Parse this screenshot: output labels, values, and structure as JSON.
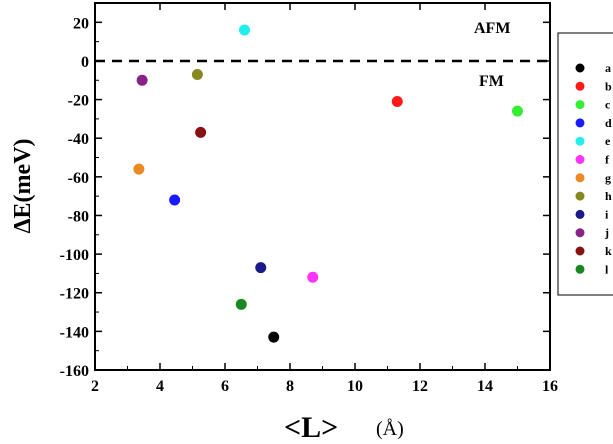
{
  "chart_data": {
    "type": "scatter",
    "title": "",
    "ylabel": "ΔE(meV)",
    "xlabel_symbol": "<L>",
    "xlabel_unit": "(Å)",
    "xlim": [
      2,
      16
    ],
    "ylim": [
      -160,
      30
    ],
    "xticks": [
      2,
      4,
      6,
      8,
      10,
      12,
      14,
      16
    ],
    "yticks": [
      20,
      0,
      -20,
      -40,
      -60,
      -80,
      -100,
      -120,
      -140,
      -160
    ],
    "grid": false,
    "reference_line": {
      "y": 0,
      "style": "dashed"
    },
    "annotations": [
      {
        "text": "AFM",
        "region": "above-reference"
      },
      {
        "text": "FM",
        "region": "below-reference"
      }
    ],
    "legend_position": "right-outside",
    "series": [
      {
        "name": "a",
        "color": "#000000",
        "x": 7.5,
        "y": -143
      },
      {
        "name": "b",
        "color": "#ff1a1a",
        "x": 11.3,
        "y": -21
      },
      {
        "name": "c",
        "color": "#33ee33",
        "x": 15.0,
        "y": -26
      },
      {
        "name": "d",
        "color": "#1a1aff",
        "x": 4.45,
        "y": -72
      },
      {
        "name": "e",
        "color": "#22eeee",
        "x": 6.6,
        "y": 16
      },
      {
        "name": "f",
        "color": "#ff33ff",
        "x": 8.7,
        "y": -112
      },
      {
        "name": "g",
        "color": "#ee8822",
        "x": 3.35,
        "y": -56
      },
      {
        "name": "h",
        "color": "#888822",
        "x": 5.15,
        "y": -7
      },
      {
        "name": "i",
        "color": "#1a1a88",
        "x": 7.1,
        "y": -107
      },
      {
        "name": "j",
        "color": "#882288",
        "x": 3.45,
        "y": -10
      },
      {
        "name": "k",
        "color": "#881111",
        "x": 5.25,
        "y": -37
      },
      {
        "name": "l",
        "color": "#1a8822",
        "x": 6.5,
        "y": -126
      }
    ]
  }
}
